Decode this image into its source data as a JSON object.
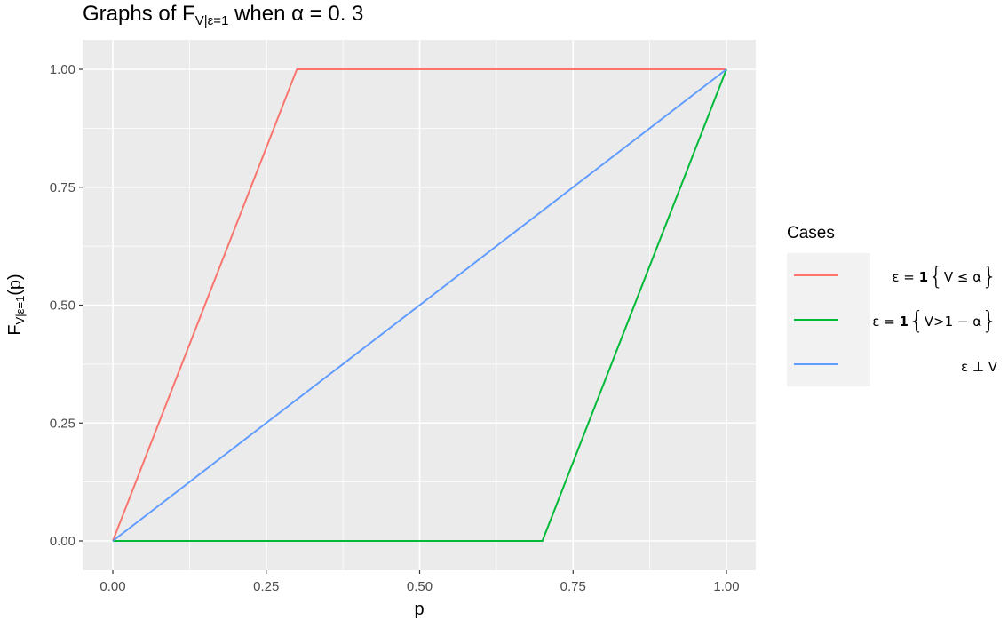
{
  "chart_data": {
    "type": "line",
    "title_main": "Graphs of F",
    "title_sub": "V|ε=1",
    "title_rest": " when α = 0. 3",
    "xlabel": "p",
    "ylabel_main": "F",
    "ylabel_sub": "V|ε=1",
    "ylabel_rest": "(p)",
    "xlim": [
      0,
      1
    ],
    "ylim": [
      0,
      1
    ],
    "xticks": [
      0,
      0.25,
      0.5,
      0.75,
      1
    ],
    "xtick_labels": [
      "0.00",
      "0.25",
      "0.50",
      "0.75",
      "1.00"
    ],
    "yticks": [
      0,
      0.25,
      0.5,
      0.75,
      1
    ],
    "ytick_labels": [
      "0.00",
      "0.25",
      "0.50",
      "0.75",
      "1.00"
    ],
    "grid": true,
    "legend_title": "Cases",
    "legend_position": "right",
    "series": [
      {
        "key": "red",
        "color": "#F8766D",
        "x": [
          0,
          0.3,
          1
        ],
        "y": [
          0,
          1,
          1
        ],
        "label_parts": [
          "ε = ",
          "1",
          "{",
          "V ≤ α",
          "}"
        ]
      },
      {
        "key": "green",
        "color": "#00BA38",
        "x": [
          0,
          0.7,
          1
        ],
        "y": [
          0,
          0,
          1
        ],
        "label_parts": [
          "ε = ",
          "1",
          "{",
          "V>1 − α",
          "}"
        ]
      },
      {
        "key": "blue",
        "color": "#619CFF",
        "x": [
          0,
          1
        ],
        "y": [
          0,
          1
        ],
        "label_parts": [
          "ε  ⊥  V"
        ]
      }
    ]
  }
}
